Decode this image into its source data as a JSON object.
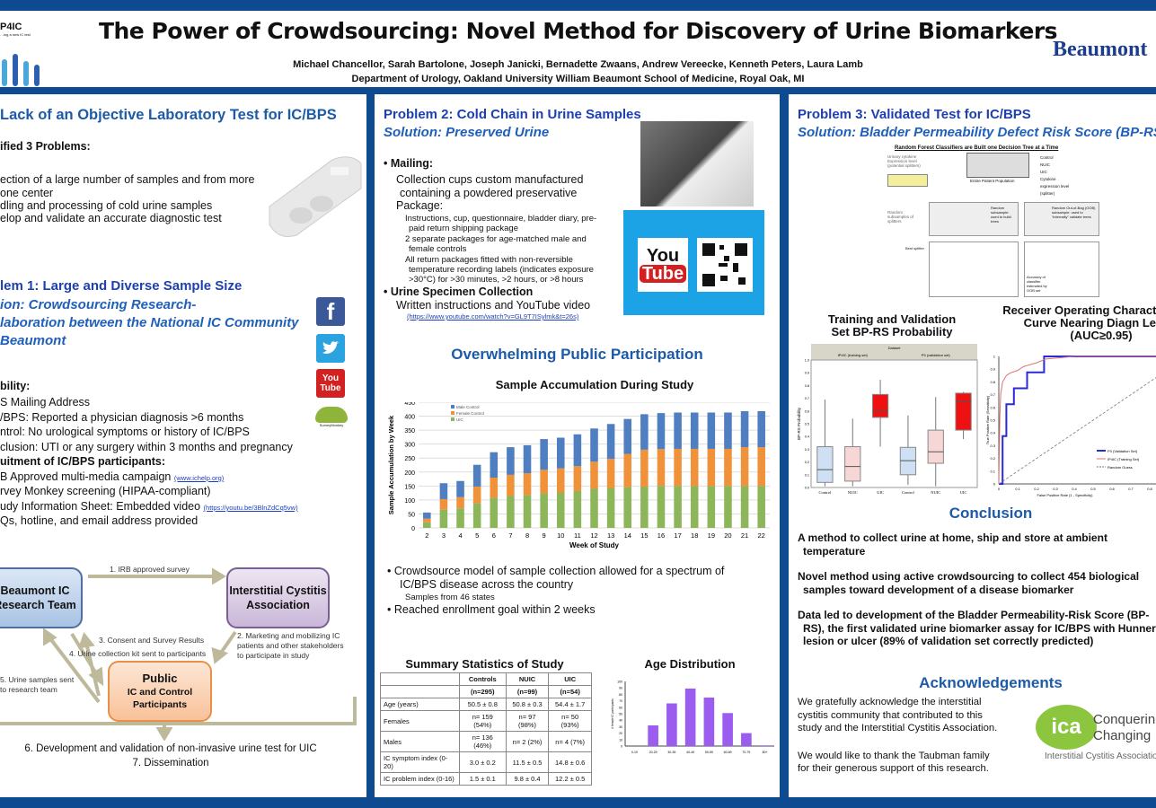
{
  "header": {
    "title": "The Power of Crowdsourcing: Novel Method for Discovery of Urine Biomarkers",
    "authors": "Michael Chancellor, Sarah Bartolone, Joseph Janicki, Bernadette Zwaans, Andrew Vereecke, Kenneth Peters, Laura Lamb",
    "affiliation": "Department of Urology, Oakland University William Beaumont School of Medicine, Royal Oak, MI",
    "logo_left": "P4IC",
    "logo_left_sub": "…ing a new IC test",
    "logo_right": "Beaumont"
  },
  "left": {
    "title": "Lack of an Objective Laboratory Test for IC/BPS",
    "identified": "ified 3 Problems:",
    "problems": [
      "ection of a large number of samples and from  more",
      "one center",
      "dling and processing of cold urine samples",
      "elop and validate an accurate diagnostic test"
    ],
    "problem1": "lem 1: Large and Diverse Sample Size",
    "solution1": [
      "ion: Crowdsourcing Research-",
      "laboration between the National IC Community",
      "Beaumont"
    ],
    "eligibility": "bility:",
    "elig_items": [
      "S Mailing Address",
      "/BPS: Reported a physician diagnosis >6 months",
      "ntrol: No urological symptoms or history of IC/BPS",
      "clusion: UTI or any surgery within 3 months and pregnancy"
    ],
    "recruit": "uitment of IC/BPS participants:",
    "recruit_items": [
      {
        "text": "B Approved multi-media campaign ",
        "link": "(www.ichelp.org)"
      },
      {
        "text": "rvey Monkey screening (HIPAA-compliant)",
        "link": ""
      },
      {
        "text": "udy Information Sheet: Embedded video ",
        "link": "(https://youtu.be/3BlnZdCq5vw)"
      },
      {
        "text": "Qs, hotline, and email address provided",
        "link": ""
      }
    ],
    "social": {
      "facebook": "f",
      "youtube_top": "You",
      "youtube_bottom": "Tube",
      "surveymonkey": "SurveyMonkey"
    },
    "diagram": {
      "beaumont": "Beaumont IC Research Team",
      "ica": "Interstitial Cystitis Association",
      "public_title": "Public",
      "public_sub": "IC and Control Participants",
      "step1": "1.  IRB approved survey",
      "step2": [
        "2. Marketing and mobilizing IC",
        "patients and other stakeholders",
        "to participate in study"
      ],
      "step3": "3. Consent and Survey Results",
      "step4": "4. Urine collection kit sent to participants",
      "step5": [
        "5.  Urine samples sent",
        "to research team"
      ],
      "step6": "6.  Development and validation of non-invasive urine test for UIC",
      "step7": "7.  Dissemination"
    }
  },
  "middle": {
    "problem2": "Problem 2: Cold Chain in Urine Samples",
    "solution2": "Solution: Preserved Urine",
    "mailing": "Mailing:",
    "collection": [
      "Collection cups custom manufactured",
      "containing a powdered preservative"
    ],
    "package": "Package:",
    "package_items": [
      "Instructions, cup, questionnaire, bladder diary, pre-",
      "paid return shipping package",
      "2 separate packages for age-matched male and",
      "female controls",
      "All return packages fitted with non-reversible",
      "temperature recording labels (indicates exposure",
      ">30°C) for >30 minutes, >2 hours, or >8 hours"
    ],
    "specimen": "Urine Specimen Collection",
    "written": "Written instructions and YouTube video",
    "video_link": "(https://www.youtube.com/watch?v=GL9T7ISylmk&t=26s)",
    "youtube_top": "You",
    "youtube_bottom": "Tube",
    "participation": "Overwhelming Public Participation",
    "bullets": [
      "Crowdsource model of sample collection allowed for a spectrum of",
      "IC/BPS disease across the country",
      "Samples from 46 states",
      "Reached enrollment goal within 2 weeks"
    ],
    "table": {
      "title": "Summary Statistics of Study",
      "headers": [
        "",
        "Controls",
        "NUIC",
        "UIC"
      ],
      "ns": [
        "",
        "(n=295)",
        "(n=99)",
        "(n=54)"
      ],
      "rows": [
        [
          "Age (years)",
          "50.5 ± 0.8",
          "50.8 ± 0.3",
          "54.4 ± 1.7"
        ],
        [
          "Females",
          "n= 159 (54%)",
          "n= 97 (98%)",
          "n= 50 (93%)"
        ],
        [
          "Males",
          "n= 136 (46%)",
          "n= 2 (2%)",
          "n= 4 (7%)"
        ],
        [
          "IC symptom index (0-20)",
          "3.0 ± 0.2",
          "11.5 ± 0.5",
          "14.8 ± 0.6"
        ],
        [
          "IC problem index (0-16)",
          "1.5 ± 0.1",
          "9.8 ± 0.4",
          "12.2 ± 0.5"
        ]
      ]
    }
  },
  "right": {
    "problem3": "Problem 3: Validated Test for IC/BPS",
    "solution3": "Solution: Bladder Permeability Defect Risk Score (BP-RS)",
    "forest": {
      "title": "Random Forest Classifiers are Built one Decision Tree at a Time",
      "splitters": "Urinary cytokine Expression level (potential splitters)",
      "letters": [
        "A",
        "B",
        "C",
        "D",
        "E",
        "F",
        "G",
        "H",
        "I",
        "J",
        "K",
        "L"
      ],
      "population": "Entire Patient Population",
      "legend": [
        "Control",
        "NUIC",
        "UIC",
        "Cytokine expression level (splitter)"
      ],
      "random": "Random subsample: used to build trees",
      "oob": "Random Out-of-Bag (OOB) subsample: used to \"internally\" validate trees",
      "subsamples": "Random subsamples of splitters",
      "best": "Best splitter",
      "accuracy": "Accuracy of classifier estimated by OOB set"
    },
    "conclusion_title": "Conclusion",
    "conclusions": [
      [
        "A method to collect urine at home, ship and store at ambient",
        "temperature"
      ],
      [
        "Novel method using active crowdsourcing to collect 454 biological",
        "samples toward development of a disease biomarker"
      ],
      [
        "Data led to development of the Bladder Permeability-Risk Score (BP-",
        "RS), the first validated urine biomarker assay for IC/BPS with Hunner",
        "lesion or ulcer (89% of validation set correctly predicted)"
      ]
    ],
    "ack_title": "Acknowledgements",
    "ack": [
      "We gratefully acknowledge the interstitial",
      "cystitis community that contributed to this",
      "study and the Interstitial Cystitis Association.",
      "We would like to thank the Taubman family",
      "for their generous support of this research."
    ],
    "ica_logo": {
      "mark": "ica",
      "line1": "Conquering",
      "line2": "Changing",
      "line3": "Interstitial Cystitis Association"
    }
  },
  "chart_data": [
    {
      "type": "bar",
      "stacked": true,
      "title": "Sample Accumulation During Study",
      "xlabel": "Week of Study",
      "ylabel": "Sample Accumulation by Week",
      "ylim": [
        0,
        450
      ],
      "yticks": [
        0,
        50,
        100,
        150,
        200,
        250,
        300,
        350,
        400,
        450
      ],
      "grid": true,
      "legend": "top-left",
      "categories": [
        "2",
        "3",
        "4",
        "5",
        "6",
        "7",
        "8",
        "9",
        "10",
        "11",
        "12",
        "13",
        "14",
        "15",
        "16",
        "17",
        "18",
        "19",
        "20",
        "21",
        "22"
      ],
      "series": [
        {
          "name": "UIC",
          "color": "#8db55a",
          "values": [
            20,
            65,
            70,
            88,
            108,
            114,
            117,
            124,
            127,
            132,
            140,
            143,
            146,
            148,
            150,
            150,
            150,
            150,
            150,
            150,
            150
          ]
        },
        {
          "name": "Female Control",
          "color": "#f0923a",
          "values": [
            13,
            38,
            40,
            60,
            72,
            76,
            79,
            84,
            86,
            89,
            97,
            104,
            119,
            132,
            132,
            133,
            133,
            133,
            133,
            139,
            139
          ]
        },
        {
          "name": "Male Control",
          "color": "#4f7fc0",
          "values": [
            22,
            57,
            58,
            78,
            91,
            99,
            100,
            110,
            110,
            114,
            119,
            125,
            125,
            127,
            129,
            130,
            130,
            130,
            130,
            129,
            129
          ]
        }
      ]
    },
    {
      "type": "bar",
      "title": "Age Distribution",
      "ylabel": "# female IC participants",
      "ylim": [
        0,
        100
      ],
      "yticks": [
        0,
        10,
        20,
        30,
        40,
        50,
        60,
        70,
        80,
        90,
        100
      ],
      "color": "#9b5cf0",
      "categories": [
        "0-19",
        "20-29",
        "30-39",
        "40-49",
        "50-59",
        "60-69",
        "70-79",
        "80+"
      ],
      "values": [
        0,
        32,
        66,
        89,
        75,
        51,
        20,
        1
      ]
    },
    {
      "type": "box",
      "title": "Training and Validation Set BP-RS Probability",
      "ylabel": "BP-RS Probability",
      "ylim": [
        0,
        1
      ],
      "yticks": [
        0,
        0.1,
        0.2,
        0.3,
        0.4,
        0.5,
        0.6,
        0.7,
        0.8,
        0.9,
        1.0
      ],
      "panel_header": "Dataset",
      "groups": [
        "IP4IC (training set)",
        "P3 (validation set)"
      ],
      "categories": [
        "Control",
        "NUIC",
        "UIC",
        "Control",
        "NUIC",
        "UIC"
      ],
      "boxes": [
        {
          "min": 0.01,
          "q1": 0.04,
          "median": 0.14,
          "q3": 0.32,
          "max": 0.69,
          "color": "#cfe0f5"
        },
        {
          "min": 0.01,
          "q1": 0.05,
          "median": 0.165,
          "q3": 0.32,
          "max": 0.54,
          "color": "#f7d6d6"
        },
        {
          "min": 0.32,
          "q1": 0.55,
          "median": 0.6,
          "q3": 0.73,
          "max": 0.845,
          "color": "#ee1111"
        },
        {
          "min": 0.02,
          "q1": 0.1,
          "median": 0.21,
          "q3": 0.315,
          "max": 0.565,
          "color": "#cfe0f5"
        },
        {
          "min": 0.01,
          "q1": 0.19,
          "median": 0.28,
          "q3": 0.45,
          "max": 0.71,
          "color": "#f7d6d6"
        },
        {
          "min": 0.38,
          "q1": 0.45,
          "median": 0.68,
          "q3": 0.74,
          "max": 0.75,
          "color": "#ee1111"
        }
      ]
    },
    {
      "type": "line",
      "title": "Receiver Operating Characte (ROC) Curve Nearing Diagn Levels (AUC≥0.95)",
      "xlabel": "False Positive Rate (1 - Specificity)",
      "ylabel": "True Positive Rate (Sensitivity)",
      "xlim": [
        0,
        1
      ],
      "ylim": [
        0,
        1
      ],
      "xticks": [
        0,
        0.1,
        0.2,
        0.3,
        0.4,
        0.5,
        0.6,
        0.7,
        0.8
      ],
      "yticks": [
        0,
        0.1,
        0.2,
        0.3,
        0.4,
        0.5,
        0.6,
        0.7,
        0.8,
        0.9,
        1
      ],
      "legend": "bottom-right",
      "series": [
        {
          "name": "P3 (Validation Set)",
          "color": "#2a2ad8",
          "x": [
            0,
            0.02,
            0.02,
            0.04,
            0.04,
            0.08,
            0.08,
            0.15,
            0.15,
            0.24,
            0.24,
            1
          ],
          "y": [
            0,
            0,
            0.375,
            0.375,
            0.625,
            0.625,
            0.75,
            0.75,
            0.875,
            0.875,
            1,
            1
          ]
        },
        {
          "name": "IP4IC (Training Set)",
          "color": "#e07070",
          "x": [
            0,
            0.005,
            0.01,
            0.02,
            0.04,
            0.06,
            0.1,
            0.13,
            0.2,
            0.25,
            0.33,
            0.4,
            1
          ],
          "y": [
            0,
            0.5,
            0.7,
            0.8,
            0.85,
            0.87,
            0.89,
            0.92,
            0.95,
            0.98,
            0.99,
            1,
            1
          ]
        },
        {
          "name": "Random Guess",
          "color": "#777777",
          "x": [
            0,
            1
          ],
          "y": [
            0,
            1
          ],
          "dashed": true
        }
      ]
    }
  ]
}
